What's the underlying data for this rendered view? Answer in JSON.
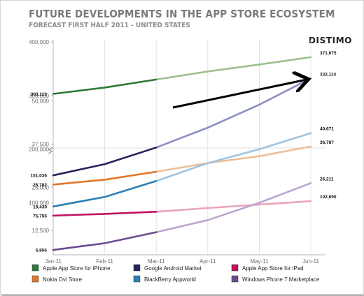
{
  "title": "FUTURE DEVELOPMENTS IN THE APP STORE ECOSYSTEM",
  "subtitle": "FORECAST FIRST HALF 2011 - UNITED STATES",
  "brand": "DISTIMO",
  "chart_data": {
    "type": "line",
    "x": [
      "Jan-11",
      "Feb-11",
      "Mar-11",
      "Apr-11",
      "May-11",
      "Jun-11"
    ],
    "upper_axis": {
      "ticks": [
        100000,
        200000,
        300000,
        400000
      ],
      "tick_labels": [
        "100,000",
        "200,000",
        "300,000",
        "400,000"
      ]
    },
    "lower_axis": {
      "ticks": [
        12500,
        25000,
        37500,
        50000
      ],
      "tick_labels": [
        "12,500",
        "25,000",
        "37,500",
        "50,000"
      ]
    },
    "scale_break": true,
    "grid": "vertical",
    "series": [
      {
        "name": "Apple App Store for iPhone",
        "panel": "upper",
        "color": "#2d7a3a",
        "light_color": "#9cbf8e",
        "values": [
          303113,
          315000,
          330000,
          345000,
          358000,
          371675
        ],
        "start_label": "303,113",
        "end_label": "371,675"
      },
      {
        "name": "Google Android Market",
        "panel": "upper",
        "color": "#25245e",
        "light_color": "#8c8fc2",
        "values": [
          151036,
          172000,
          203000,
          240000,
          283000,
          332114
        ],
        "start_label": "151,036",
        "end_label": "332,114"
      },
      {
        "name": "Apple App Store for iPad",
        "panel": "upper",
        "color": "#c0125f",
        "light_color": "#eba3bf",
        "values": [
          75755,
          79000,
          83000,
          90000,
          96500,
          102690
        ],
        "start_label": "75,755",
        "end_label": "102,690"
      },
      {
        "name": "Nokia Ovi Store",
        "panel": "lower",
        "color": "#e2762a",
        "light_color": "#edbf96",
        "values": [
          25782,
          27200,
          29500,
          32000,
          34000,
          36787
        ],
        "start_label": "25,782",
        "end_label": "36,787"
      },
      {
        "name": "BlackBerry Appworld",
        "panel": "lower",
        "color": "#2f7fb6",
        "light_color": "#9fc4df",
        "values": [
          19439,
          22200,
          26800,
          32000,
          36000,
          40671
        ],
        "start_label": "19,439",
        "end_label": "40,671"
      },
      {
        "name": "Windows Phone 7 Marketplace",
        "panel": "lower",
        "color": "#6b4a8f",
        "light_color": "#bba6cf",
        "values": [
          6856,
          8800,
          12000,
          15500,
          20500,
          26211
        ],
        "start_label": "6,856",
        "end_label": "26,211"
      }
    ],
    "legend": {
      "position": "bottom",
      "rows": [
        [
          "Apple App Store for iPhone",
          "Google Android Market",
          "Apple App Store for iPad"
        ],
        [
          "Nokia Ovi Store",
          "BlackBerry Appworld",
          "Windows Phone 7 Marketplace"
        ]
      ]
    },
    "annotation": "arrow pointing to the Google Android Market end value",
    "forecast_starts_after": "Mar-11"
  }
}
